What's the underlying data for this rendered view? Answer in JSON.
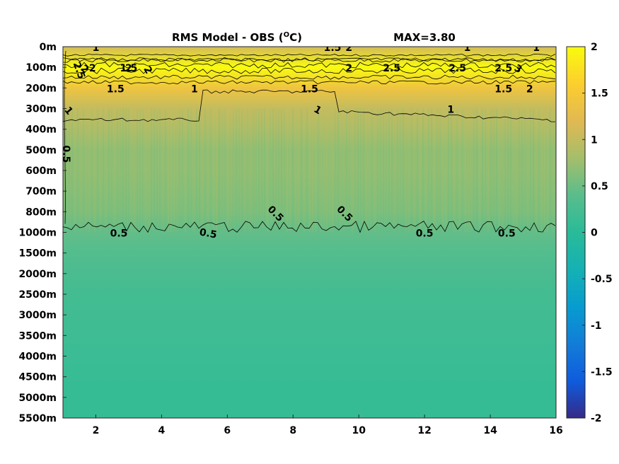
{
  "chart_data": {
    "type": "heatmap",
    "title": "RMS Model - OBS (°C)",
    "title_parts": {
      "prefix": "RMS Model - OBS (",
      "superscript": "O",
      "suffix": "C)"
    },
    "max_label": "MAX=3.80",
    "x_ticks": [
      "2",
      "4",
      "6",
      "8",
      "10",
      "12",
      "14",
      "16"
    ],
    "x_tick_values": [
      2,
      4,
      6,
      8,
      10,
      12,
      14,
      16
    ],
    "xlim": [
      1,
      16
    ],
    "y_ticks": [
      "0m",
      "100m",
      "200m",
      "300m",
      "400m",
      "500m",
      "600m",
      "700m",
      "800m",
      "1000m",
      "1500m",
      "2000m",
      "2500m",
      "3000m",
      "3500m",
      "4000m",
      "4500m",
      "5000m",
      "5500m"
    ],
    "colorbar": {
      "ticks": [
        "2",
        "1.5",
        "1",
        "0.5",
        "0",
        "-0.5",
        "-1",
        "-1.5",
        "-2"
      ],
      "tick_values": [
        2,
        1.5,
        1,
        0.5,
        0,
        -0.5,
        -1,
        -1.5,
        -2
      ],
      "range": [
        -2,
        2
      ],
      "colormap": "parula"
    },
    "depth_profile": [
      {
        "depth": "0m",
        "value": 1.1
      },
      {
        "depth": "100m",
        "value": 2.3
      },
      {
        "depth": "200m",
        "value": 1.4
      },
      {
        "depth": "300m",
        "value": 1.0
      },
      {
        "depth": "400m",
        "value": 0.85
      },
      {
        "depth": "500m",
        "value": 0.7
      },
      {
        "depth": "600m",
        "value": 0.7
      },
      {
        "depth": "700m",
        "value": 0.65
      },
      {
        "depth": "800m",
        "value": 0.6
      },
      {
        "depth": "1000m",
        "value": 0.45
      },
      {
        "depth": "1500m",
        "value": 0.35
      },
      {
        "depth": "2000m",
        "value": 0.28
      },
      {
        "depth": "2500m",
        "value": 0.22
      },
      {
        "depth": "3000m",
        "value": 0.2
      },
      {
        "depth": "3500m",
        "value": 0.18
      },
      {
        "depth": "4000m",
        "value": 0.15
      },
      {
        "depth": "4500m",
        "value": 0.12
      },
      {
        "depth": "5000m",
        "value": 0.1
      },
      {
        "depth": "5500m",
        "value": 0.1
      }
    ],
    "contour_labels": [
      {
        "text": "1",
        "x": 2.0,
        "depth": "0m",
        "rotate": 0
      },
      {
        "text": "1.5",
        "x": 9.2,
        "depth": "0m",
        "rotate": 0
      },
      {
        "text": "2",
        "x": 9.7,
        "depth": "0m",
        "rotate": 0
      },
      {
        "text": "1",
        "x": 13.3,
        "depth": "0m",
        "rotate": 0
      },
      {
        "text": "1",
        "x": 15.4,
        "depth": "0m",
        "rotate": 0
      },
      {
        "text": "2.5",
        "x": 1.4,
        "depth": "100m",
        "rotate": 70
      },
      {
        "text": "2",
        "x": 1.6,
        "depth": "100m",
        "rotate": 40
      },
      {
        "text": "2",
        "x": 1.9,
        "depth": "100m",
        "rotate": 0
      },
      {
        "text": "1.5",
        "x": 3.0,
        "depth": "100m",
        "rotate": 0
      },
      {
        "text": "2",
        "x": 3.0,
        "depth": "100m",
        "rotate": 0
      },
      {
        "text": "2",
        "x": 3.5,
        "depth": "100m",
        "rotate": 60
      },
      {
        "text": "2",
        "x": 9.7,
        "depth": "100m",
        "rotate": 0
      },
      {
        "text": "2.5",
        "x": 11.0,
        "depth": "100m",
        "rotate": 0
      },
      {
        "text": "2.5",
        "x": 13.0,
        "depth": "100m",
        "rotate": 0
      },
      {
        "text": "2.5",
        "x": 14.4,
        "depth": "100m",
        "rotate": 0
      },
      {
        "text": "3",
        "x": 14.8,
        "depth": "100m",
        "rotate": 30
      },
      {
        "text": "1.5",
        "x": 2.6,
        "depth": "200m",
        "rotate": 0
      },
      {
        "text": "1.5",
        "x": 8.5,
        "depth": "200m",
        "rotate": 0
      },
      {
        "text": "2",
        "x": 15.2,
        "depth": "200m",
        "rotate": 0
      },
      {
        "text": "1",
        "x": 5.0,
        "depth": "200m",
        "rotate": 0
      },
      {
        "text": "1.5",
        "x": 14.4,
        "depth": "200m",
        "rotate": 0
      },
      {
        "text": "1",
        "x": 1.1,
        "depth": "300m",
        "rotate": 50
      },
      {
        "text": "1",
        "x": 8.7,
        "depth": "300m",
        "rotate": 30
      },
      {
        "text": "1",
        "x": 12.8,
        "depth": "300m",
        "rotate": 0
      },
      {
        "text": "0.5",
        "x": 1.0,
        "depth": "500m",
        "rotate": 90
      },
      {
        "text": "0.5",
        "x": 2.7,
        "depth": "1000m",
        "rotate": 0
      },
      {
        "text": "0.5",
        "x": 5.4,
        "depth": "1000m",
        "rotate": 10
      },
      {
        "text": "0.5",
        "x": 7.4,
        "depth": "800m",
        "rotate": 45
      },
      {
        "text": "0.5",
        "x": 9.5,
        "depth": "800m",
        "rotate": 45
      },
      {
        "text": "0.5",
        "x": 12.0,
        "depth": "1000m",
        "rotate": 0
      },
      {
        "text": "0.5",
        "x": 14.5,
        "depth": "1000m",
        "rotate": 0
      }
    ]
  }
}
